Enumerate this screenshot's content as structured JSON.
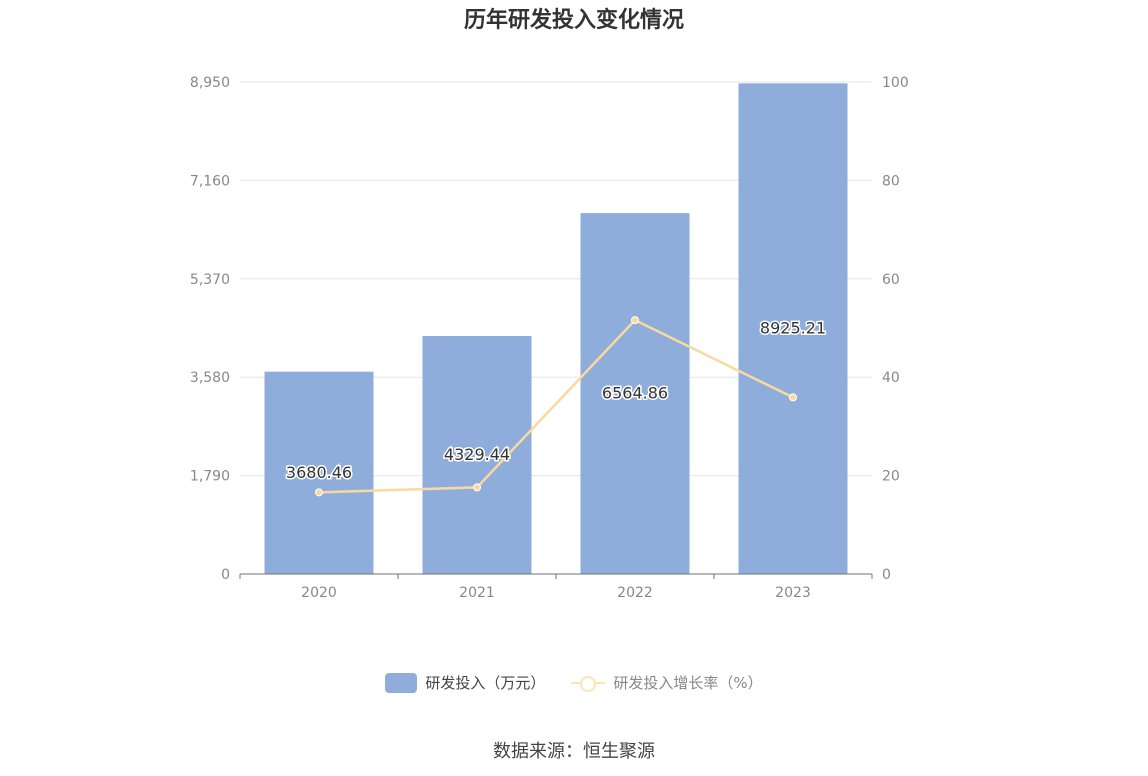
{
  "title": "历年研发投入变化情况",
  "source": "数据来源：恒生聚源",
  "legend": {
    "bar_label": "研发投入（万元）",
    "line_label": "研发投入增长率（%）"
  },
  "colors": {
    "bar": "#8eadda",
    "line": "#fad9a0",
    "grid": "#e3e6ef",
    "axis_text": "#888888"
  },
  "chart_data": {
    "type": "bar",
    "categories": [
      "2020",
      "2021",
      "2022",
      "2023"
    ],
    "series": [
      {
        "name": "研发投入（万元）",
        "type": "bar",
        "axis": "left",
        "values": [
          3680.46,
          4329.44,
          6564.86,
          8925.21
        ],
        "labels": [
          "3680.46",
          "4329.44",
          "6564.86",
          "8925.21"
        ]
      },
      {
        "name": "研发投入增长率（%）",
        "type": "line",
        "axis": "right",
        "values": [
          16.6,
          17.6,
          51.6,
          35.9
        ]
      }
    ],
    "y_left": {
      "ylim": [
        0,
        8950
      ],
      "ticks": [
        0,
        1790,
        3580,
        5370,
        7160,
        8950
      ],
      "tick_labels": [
        "0",
        "1,790",
        "3,580",
        "5,370",
        "7,160",
        "8,950"
      ]
    },
    "y_right": {
      "ylim": [
        0,
        100
      ],
      "ticks": [
        0,
        20,
        40,
        60,
        80,
        100
      ],
      "tick_labels": [
        "0",
        "20",
        "40",
        "60",
        "80",
        "100"
      ]
    },
    "grid": true,
    "legend_position": "bottom-center"
  }
}
